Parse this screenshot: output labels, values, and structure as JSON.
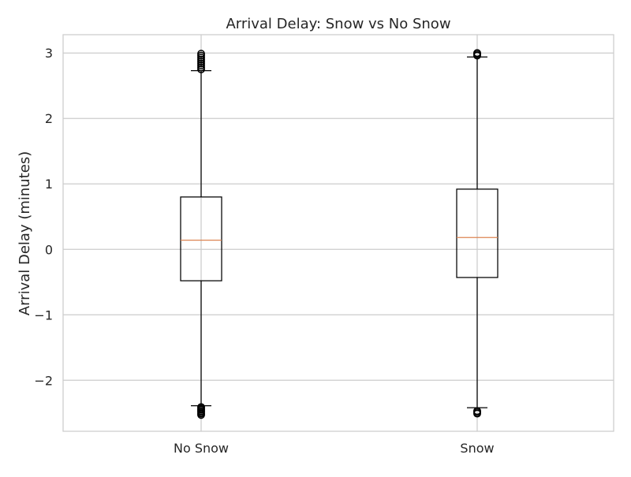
{
  "chart_data": {
    "type": "box",
    "title": "Arrival Delay: Snow vs No Snow",
    "xlabel": "",
    "ylabel": "Arrival Delay (minutes)",
    "ylim": [
      -2.78,
      3.28
    ],
    "yticks": [
      -2,
      -1,
      0,
      1,
      2,
      3
    ],
    "ytick_labels": [
      "−2",
      "−1",
      "0",
      "1",
      "2",
      "3"
    ],
    "grid": true,
    "categories": [
      "No Snow",
      "Snow"
    ],
    "boxes": [
      {
        "label": "No Snow",
        "whisker_low": -2.39,
        "q1": -0.48,
        "median": 0.14,
        "q3": 0.8,
        "whisker_high": 2.73,
        "outliers_low": [
          -2.53,
          -2.51,
          -2.49,
          -2.47,
          -2.45,
          -2.43,
          -2.41
        ],
        "outliers_high": [
          2.75,
          2.78,
          2.81,
          2.84,
          2.87,
          2.9,
          2.93,
          2.96,
          2.99
        ]
      },
      {
        "label": "Snow",
        "whisker_low": -2.42,
        "q1": -0.43,
        "median": 0.18,
        "q3": 0.92,
        "whisker_high": 2.94,
        "outliers_low": [
          -2.51,
          -2.49,
          -2.47
        ],
        "outliers_high": [
          2.96,
          2.98,
          3.0
        ]
      }
    ],
    "colors": {
      "box": "#000000",
      "median": "#dd8452",
      "grid": "#cccccc",
      "spine": "#cccccc"
    }
  }
}
